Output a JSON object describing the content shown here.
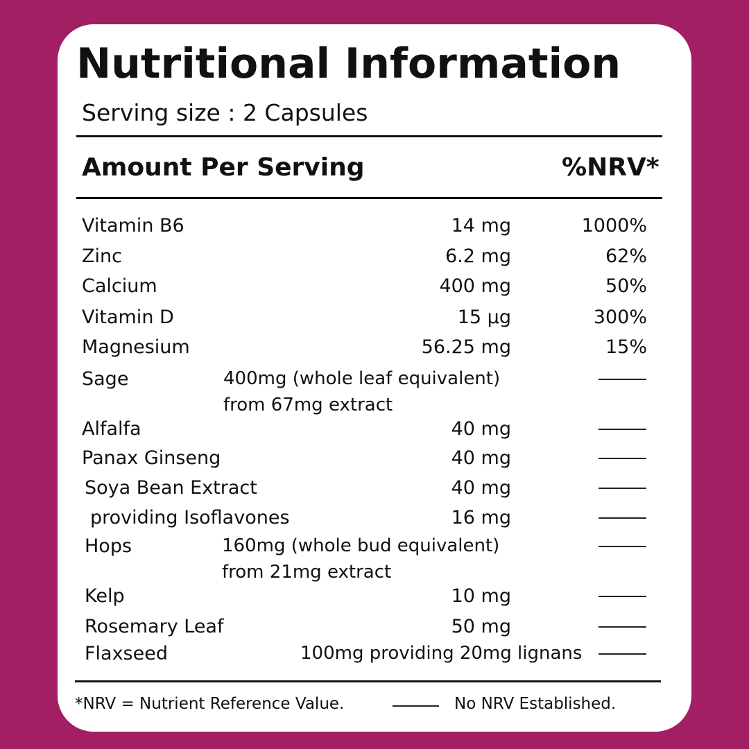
{
  "title": "Nutritional Information",
  "serving": "Serving size : 2 Capsules",
  "header": {
    "amount": "Amount Per Serving",
    "nrv": "%NRV*"
  },
  "rows": [
    {
      "name": "Vitamin B6",
      "amount": "14 mg",
      "nrv": "1000%"
    },
    {
      "name": "Zinc",
      "amount": "6.2 mg",
      "nrv": "62%"
    },
    {
      "name": "Calcium",
      "amount": "400 mg",
      "nrv": "50%"
    },
    {
      "name": "Vitamin D",
      "amount": "15 µg",
      "nrv": "300%"
    },
    {
      "name": "Magnesium",
      "amount": "56.25 mg",
      "nrv": "15%"
    },
    {
      "name": "Sage",
      "amount": "400mg (whole leaf equivalent)",
      "amount2": "from 67mg extract"
    },
    {
      "name": "Alfalfa",
      "amount": "40 mg"
    },
    {
      "name": "Panax Ginseng",
      "amount": "40 mg"
    },
    {
      "name": "Soya Bean Extract",
      "amount": "40 mg"
    },
    {
      "name": "providing Isoflavones",
      "amount": "16 mg"
    },
    {
      "name": "Hops",
      "amount": "160mg (whole bud equivalent)",
      "amount2": "from 21mg extract"
    },
    {
      "name": "Kelp",
      "amount": "10 mg"
    },
    {
      "name": "Rosemary Leaf",
      "amount": "50 mg"
    },
    {
      "name": "Flaxseed",
      "amount": "100mg providing 20mg lignans"
    }
  ],
  "footer": {
    "definition": "*NRV = Nutrient Reference Value.",
    "no_nrv": "No NRV Established."
  },
  "colors": {
    "background": "#a31f63",
    "card": "#ffffff",
    "text": "#111111"
  }
}
